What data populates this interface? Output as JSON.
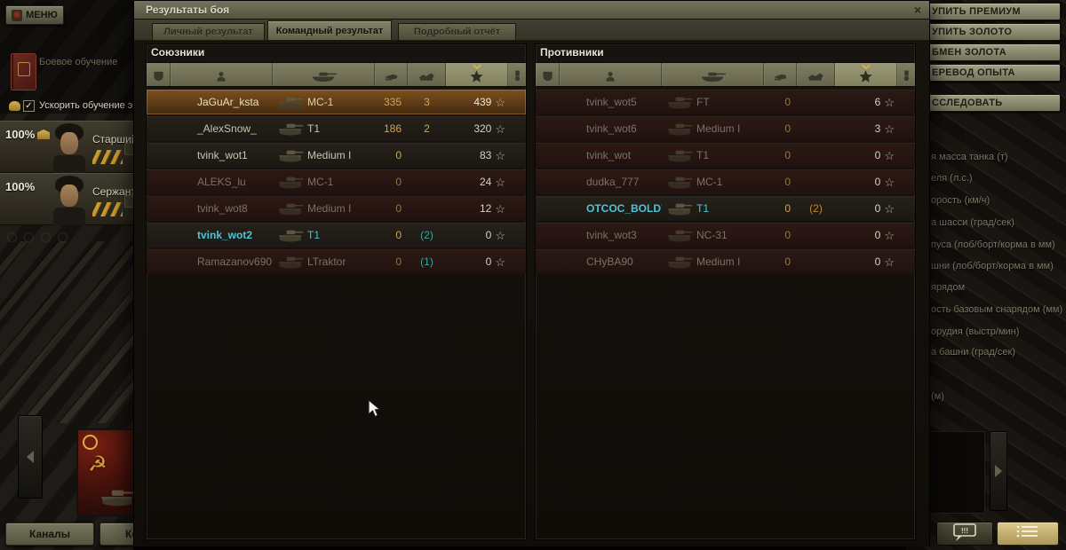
{
  "dialog": {
    "title": "Результаты боя",
    "close_label": "×",
    "xp_star": "☆",
    "tabs": [
      {
        "label": "Личный результат",
        "active": false
      },
      {
        "label": "Командный результат",
        "active": true
      },
      {
        "label": "Подробный отчёт",
        "active": false
      }
    ],
    "columns": [
      "clan",
      "player",
      "tank",
      "damage",
      "frags",
      "xp",
      "medals"
    ],
    "allies": {
      "title": "Союзники",
      "rows": [
        {
          "player": "JaGuAr_ksta",
          "tank": "МС-1",
          "damage": "335",
          "frags": "3",
          "xp": "439",
          "state": "selected",
          "cyan": false
        },
        {
          "player": "_AlexSnow_",
          "tank": "T1",
          "damage": "186",
          "frags": "2",
          "xp": "320",
          "state": "alive",
          "cyan": false
        },
        {
          "player": "tvink_wot1",
          "tank": "Medium I",
          "damage": "0",
          "frags": "",
          "xp": "83",
          "state": "alive",
          "cyan": false
        },
        {
          "player": "ALEKS_lu",
          "tank": "МС-1",
          "damage": "0",
          "frags": "",
          "xp": "24",
          "state": "dead",
          "cyan": false
        },
        {
          "player": "tvink_wot8",
          "tank": "Medium I",
          "damage": "0",
          "frags": "",
          "xp": "12",
          "state": "dead",
          "cyan": false
        },
        {
          "player": "tvink_wot2",
          "tank": "T1",
          "damage": "0",
          "frags": "(2)",
          "frag_style": "teal",
          "xp": "0",
          "state": "alive",
          "cyan": true
        },
        {
          "player": "Ramazanov690",
          "tank": "LTraktor",
          "damage": "0",
          "frags": "(1)",
          "frag_style": "teal",
          "xp": "0",
          "state": "dead",
          "cyan": false
        }
      ]
    },
    "enemies": {
      "title": "Противники",
      "rows": [
        {
          "player": "tvink_wot5",
          "tank": "FT",
          "damage": "0",
          "frags": "",
          "xp": "6",
          "state": "dead",
          "cyan": false
        },
        {
          "player": "tvink_wot6",
          "tank": "Medium I",
          "damage": "0",
          "frags": "",
          "xp": "3",
          "state": "dead",
          "cyan": false
        },
        {
          "player": "tvink_wot",
          "tank": "T1",
          "damage": "0",
          "frags": "",
          "xp": "0",
          "state": "dead",
          "cyan": false
        },
        {
          "player": "dudka_777",
          "tank": "МС-1",
          "damage": "0",
          "frags": "",
          "xp": "0",
          "state": "dead",
          "cyan": false
        },
        {
          "player": "OTCOC_BOLDY",
          "tank": "T1",
          "damage": "0",
          "frags": "(2)",
          "frag_style": "gold",
          "xp": "0",
          "state": "alive",
          "cyan": true
        },
        {
          "player": "tvink_wot3",
          "tank": "NC-31",
          "damage": "0",
          "frags": "",
          "xp": "0",
          "state": "dead",
          "cyan": false
        },
        {
          "player": "CHyBA90",
          "tank": "Medium I",
          "damage": "0",
          "frags": "",
          "xp": "0",
          "state": "dead",
          "cyan": false
        }
      ]
    }
  },
  "hangar_left": {
    "menu_button": "МЕНЮ",
    "battle_training_label": "Боевое обучение",
    "accelerate_training_label": "Ускорить обучение эки",
    "accelerate_check": "✓",
    "crew": [
      {
        "percent": "100%",
        "name": "Старший",
        "premium_academy": true
      },
      {
        "percent": "100%",
        "name": "Сержант",
        "premium_academy": false
      }
    ],
    "channels_button": "Каналы",
    "contacts_button": "Кон"
  },
  "hangar_right": {
    "buttons": [
      {
        "label": "УПИТЬ ПРЕМИУМ"
      },
      {
        "label": "УПИТЬ ЗОЛОТО"
      },
      {
        "label": "БМЕН ЗОЛОТА"
      },
      {
        "label": "ЕРЕВОД ОПЫТА"
      },
      {
        "label": "ССЛЕДОВАТЬ"
      }
    ],
    "spec_labels": [
      "я масса танка (т)",
      "еля (л.с.)",
      "орость (км/ч)",
      "а шасси (град/сек)",
      "пуса (лоб/борт/корма в мм)",
      "шни (лоб/борт/корма в мм)",
      "ярядом",
      "ость базовым снарядом (мм)",
      "орудия (выстр/мин)",
      "а башни (град/сек)",
      "(м)"
    ]
  },
  "colors": {
    "accent_gold": "#c9a75f",
    "squad_cyan": "#4cc5d7",
    "teamkill_teal": "#3aa897",
    "teamkill_gold": "#c08a2e",
    "dead_row": "#2d1913",
    "selected_row": "#7e501e"
  }
}
